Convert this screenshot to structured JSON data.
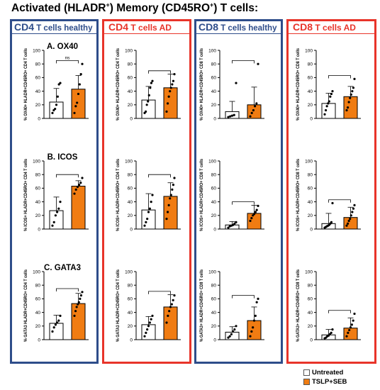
{
  "title": {
    "pre": "Activated (HLADR",
    "sup1": "+",
    "mid": ") Memory (CD45RO",
    "sup2": "+",
    "post": ") T cells:"
  },
  "columns": [
    {
      "label_big": "CD4",
      "label_rest": " T cells healthy"
    },
    {
      "label_big": "CD4",
      "label_rest": " T cells AD"
    },
    {
      "label_big": "CD8",
      "label_rest": " T cells healthy"
    },
    {
      "label_big": "CD8",
      "label_rest": " T cells AD"
    }
  ],
  "legend": {
    "untreated": "Untreated",
    "tslp": "TSLP+SEB"
  },
  "colors": {
    "blue": "#2e4d8a",
    "red": "#e8342a",
    "orange": "#f07c12"
  },
  "chart_data": [
    {
      "type": "bar",
      "title": "A. OX40",
      "ylabel": "% OX40+ HLADR+CD45RO+ CD4 T cells",
      "ylim": [
        0,
        100
      ],
      "ticks": [
        0,
        20,
        40,
        60,
        80,
        100
      ],
      "categories": [
        "Untreated",
        "TSLP+SEB"
      ],
      "values": [
        24,
        43
      ],
      "errors": [
        20,
        20
      ],
      "significance": "ns",
      "points": [
        [
          8,
          12,
          14,
          20,
          32,
          50,
          52
        ],
        [
          8,
          18,
          23,
          36,
          50,
          65,
          80
        ]
      ]
    },
    {
      "type": "bar",
      "title": "",
      "ylabel": "% OX40+ HLADR+CD45RO+ CD4 T cells",
      "ylim": [
        0,
        100
      ],
      "ticks": [
        0,
        20,
        40,
        60,
        80,
        100
      ],
      "categories": [
        "Untreated",
        "TSLP+SEB"
      ],
      "values": [
        27,
        45
      ],
      "errors": [
        20,
        20
      ],
      "significance": "",
      "points": [
        [
          8,
          10,
          20,
          25,
          34,
          45,
          52,
          55
        ],
        [
          10,
          22,
          32,
          40,
          45,
          50,
          55,
          65
        ]
      ]
    },
    {
      "type": "bar",
      "title": "",
      "ylabel": "% OX40+ HLADR+CD45RO+ CD8 T cells",
      "ylim": [
        0,
        100
      ],
      "ticks": [
        0,
        20,
        40,
        60,
        80,
        100
      ],
      "categories": [
        "Untreated",
        "TSLP+SEB"
      ],
      "values": [
        10,
        20
      ],
      "errors": [
        15,
        26
      ],
      "significance": "",
      "points": [
        [
          2,
          3,
          4,
          5,
          52
        ],
        [
          3,
          8,
          12,
          18,
          22,
          80
        ]
      ]
    },
    {
      "type": "bar",
      "title": "",
      "ylabel": "% OX40+ HLADR+CD45RO+ CD8 T cells",
      "ylim": [
        0,
        100
      ],
      "ticks": [
        0,
        20,
        40,
        60,
        80,
        100
      ],
      "categories": [
        "Untreated",
        "TSLP+SEB"
      ],
      "values": [
        22,
        32
      ],
      "errors": [
        15,
        15
      ],
      "significance": "",
      "points": [
        [
          6,
          12,
          18,
          22,
          25,
          32,
          36,
          40
        ],
        [
          12,
          16,
          24,
          30,
          35,
          40,
          45,
          58
        ]
      ]
    },
    {
      "type": "bar",
      "title": "B. ICOS",
      "ylabel": "% ICOS+ HLADR+CD45RO+ CD4 T cells",
      "ylim": [
        0,
        100
      ],
      "ticks": [
        0,
        20,
        40,
        60,
        80,
        100
      ],
      "categories": [
        "Untreated",
        "TSLP+SEB"
      ],
      "values": [
        27,
        63
      ],
      "errors": [
        20,
        8
      ],
      "significance": "",
      "points": [
        [
          5,
          10,
          20,
          25,
          30,
          40
        ],
        [
          52,
          58,
          62,
          65,
          68,
          75
        ]
      ]
    },
    {
      "type": "bar",
      "title": "",
      "ylabel": "% ICOS+ HLADR+CD45RO+ CD4 T cells",
      "ylim": [
        0,
        100
      ],
      "ticks": [
        0,
        20,
        40,
        60,
        80,
        100
      ],
      "categories": [
        "Untreated",
        "TSLP+SEB"
      ],
      "values": [
        28,
        48
      ],
      "errors": [
        24,
        20
      ],
      "significance": "",
      "points": [
        [
          5,
          10,
          15,
          25,
          30,
          40,
          50
        ],
        [
          15,
          25,
          35,
          45,
          50,
          58,
          65,
          75
        ]
      ]
    },
    {
      "type": "bar",
      "title": "",
      "ylabel": "% ICOS+ HLADR+CD45RO+ CD8 T cells",
      "ylim": [
        0,
        100
      ],
      "ticks": [
        0,
        20,
        40,
        60,
        80,
        100
      ],
      "categories": [
        "Untreated",
        "TSLP+SEB"
      ],
      "values": [
        6,
        23
      ],
      "errors": [
        5,
        12
      ],
      "significance": "",
      "points": [
        [
          2,
          4,
          5,
          6,
          8,
          10
        ],
        [
          12,
          16,
          20,
          22,
          25,
          28,
          34
        ]
      ]
    },
    {
      "type": "bar",
      "title": "",
      "ylabel": "% ICOS+ HLADR+CD45RO+ CD8 T cells",
      "ylim": [
        0,
        100
      ],
      "ticks": [
        0,
        20,
        40,
        60,
        80,
        100
      ],
      "categories": [
        "Untreated",
        "TSLP+SEB"
      ],
      "values": [
        8,
        17
      ],
      "errors": [
        15,
        15
      ],
      "significance": "",
      "points": [
        [
          2,
          3,
          4,
          5,
          6,
          8,
          10,
          38
        ],
        [
          5,
          8,
          12,
          15,
          20,
          25,
          30,
          35
        ]
      ]
    },
    {
      "type": "bar",
      "title": "C. GATA3",
      "ylabel": "% GATA3 HLADR+CD45RO+ CD4 T cells",
      "ylim": [
        0,
        100
      ],
      "ticks": [
        0,
        20,
        40,
        60,
        80,
        100
      ],
      "categories": [
        "Untreated",
        "TSLP+SEB"
      ],
      "values": [
        24,
        53
      ],
      "errors": [
        12,
        15
      ],
      "significance": "",
      "points": [
        [
          12,
          18,
          22,
          25,
          28,
          35
        ],
        [
          35,
          42,
          48,
          52,
          55,
          60,
          65,
          70
        ]
      ]
    },
    {
      "type": "bar",
      "title": "",
      "ylabel": "% GATA3 HLADR+CD45RO+ CD4 T cells",
      "ylim": [
        0,
        100
      ],
      "ticks": [
        0,
        20,
        40,
        60,
        80,
        100
      ],
      "categories": [
        "Untreated",
        "TSLP+SEB"
      ],
      "values": [
        22,
        48
      ],
      "errors": [
        12,
        18
      ],
      "significance": "",
      "points": [
        [
          5,
          10,
          15,
          20,
          25,
          30,
          35
        ],
        [
          25,
          35,
          42,
          48,
          52,
          58,
          65
        ]
      ]
    },
    {
      "type": "bar",
      "title": "",
      "ylabel": "% GATA3+ HLADR+CD45RO+ CD8 T cells",
      "ylim": [
        0,
        100
      ],
      "ticks": [
        0,
        20,
        40,
        60,
        80,
        100
      ],
      "categories": [
        "Untreated",
        "TSLP+SEB"
      ],
      "values": [
        11,
        28
      ],
      "errors": [
        8,
        20
      ],
      "significance": "",
      "points": [
        [
          3,
          5,
          8,
          12,
          15,
          20
        ],
        [
          5,
          12,
          18,
          28,
          35,
          55,
          60
        ]
      ]
    },
    {
      "type": "bar",
      "title": "",
      "ylabel": "% GATA3+ HLADR+CD45RO+ CD8 T cells",
      "ylim": [
        0,
        100
      ],
      "ticks": [
        0,
        20,
        40,
        60,
        80,
        100
      ],
      "categories": [
        "Untreated",
        "TSLP+SEB"
      ],
      "values": [
        7,
        17
      ],
      "errors": [
        8,
        15
      ],
      "significance": "",
      "points": [
        [
          2,
          3,
          5,
          6,
          8,
          10,
          15
        ],
        [
          5,
          10,
          14,
          18,
          22,
          28,
          38
        ]
      ]
    }
  ]
}
